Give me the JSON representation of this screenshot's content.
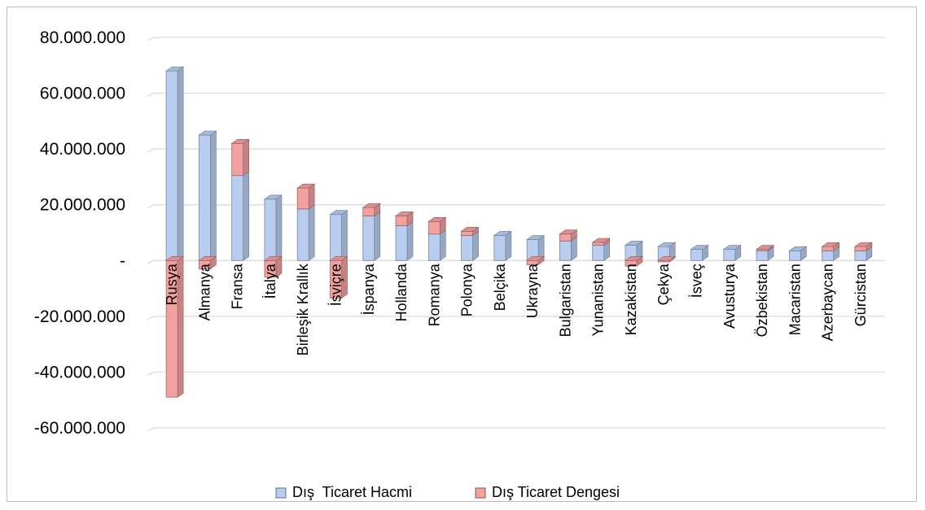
{
  "chart_data": {
    "type": "bar",
    "stacked": true,
    "style": "3d-column",
    "categories": [
      "Rusya",
      "Almanya",
      "Fransa",
      "İtalya",
      "Birleşik Krallık",
      "İsviçre",
      "İspanya",
      "Hollanda",
      "Romanya",
      "Polonya",
      "Belçika",
      "Ukrayna",
      "Bulgaristan",
      "Yunanistan",
      "Kazakistan",
      "Çekya",
      "İsveç",
      "Avusturya",
      "Özbekistan",
      "Macaristan",
      "Azerbaycan",
      "Gürcistan"
    ],
    "series": [
      {
        "name": "Dış  Ticaret Hacmi",
        "color": "#b8cdf0",
        "values": [
          68000000,
          45000000,
          30500000,
          22000000,
          18500000,
          16500000,
          16000000,
          12500000,
          9500000,
          9000000,
          9000000,
          7500000,
          7000000,
          5500000,
          5500000,
          5000000,
          4000000,
          4000000,
          3500000,
          3500000,
          3500000,
          3500000
        ]
      },
      {
        "name": "Dış Ticaret Dengesi",
        "color": "#f2a0a0",
        "values": [
          -49000000,
          -3000000,
          11500000,
          -6000000,
          7500000,
          -13500000,
          3000000,
          3500000,
          4500000,
          1500000,
          0,
          -1500000,
          2500000,
          1000000,
          -2000000,
          -500000,
          0,
          0,
          500000,
          0,
          1500000,
          1500000
        ]
      }
    ],
    "y_tick_labels": [
      "80.000.000",
      "60.000.000",
      "40.000.000",
      "20.000.000",
      "-",
      "-20.000.000",
      "-40.000.000",
      "-60.000.000"
    ],
    "ylim": [
      -60000000,
      80000000
    ],
    "y_step": 20000000,
    "grid": true,
    "legend_position": "bottom",
    "title": "",
    "xlabel": "",
    "ylabel": ""
  }
}
